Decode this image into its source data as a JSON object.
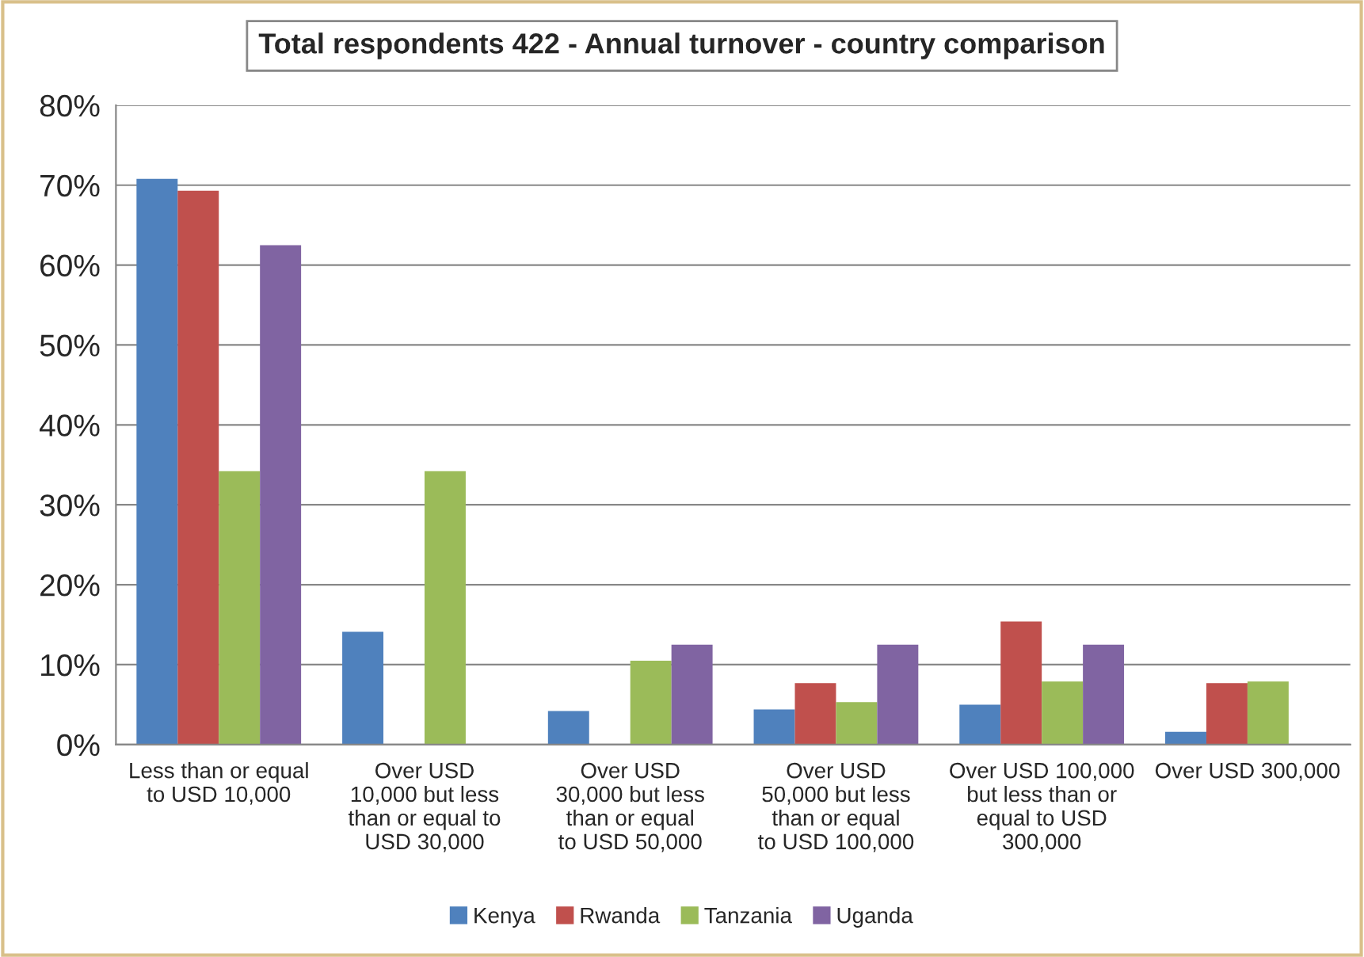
{
  "chart_data": {
    "type": "bar",
    "title": "Total respondents 422 - Annual turnover - country comparison",
    "categories": [
      "Less than or equal\nto USD 10,000",
      "Over USD\n10,000 but less\nthan or equal to\nUSD 30,000",
      "Over USD\n30,000 but less\nthan or equal\nto USD 50,000",
      "Over USD\n50,000 but less\nthan or equal\nto USD 100,000",
      "Over USD 100,000\nbut less than or\nequal to USD\n300,000",
      "Over USD 300,000"
    ],
    "series": [
      {
        "name": "Kenya",
        "color": "#4f81bd",
        "values": [
          70.8,
          14.1,
          4.2,
          4.4,
          5.0,
          1.6
        ]
      },
      {
        "name": "Rwanda",
        "color": "#c0504d",
        "values": [
          69.3,
          null,
          null,
          7.7,
          15.4,
          7.7
        ]
      },
      {
        "name": "Tanzania",
        "color": "#9bbb59",
        "values": [
          34.2,
          34.2,
          10.5,
          5.3,
          7.9,
          7.9
        ]
      },
      {
        "name": "Uganda",
        "color": "#8064a2",
        "values": [
          62.5,
          null,
          12.5,
          12.5,
          12.5,
          null
        ]
      }
    ],
    "ylim": [
      0,
      80
    ],
    "yticks": [
      {
        "value": 0,
        "label": "0%"
      },
      {
        "value": 10,
        "label": "10%"
      },
      {
        "value": 20,
        "label": "20%"
      },
      {
        "value": 30,
        "label": "30%"
      },
      {
        "value": 40,
        "label": "40%"
      },
      {
        "value": 50,
        "label": "50%"
      },
      {
        "value": 60,
        "label": "60%"
      },
      {
        "value": 70,
        "label": "70%"
      },
      {
        "value": 80,
        "label": "80%"
      }
    ],
    "grid": "y",
    "legend": "bottom"
  }
}
